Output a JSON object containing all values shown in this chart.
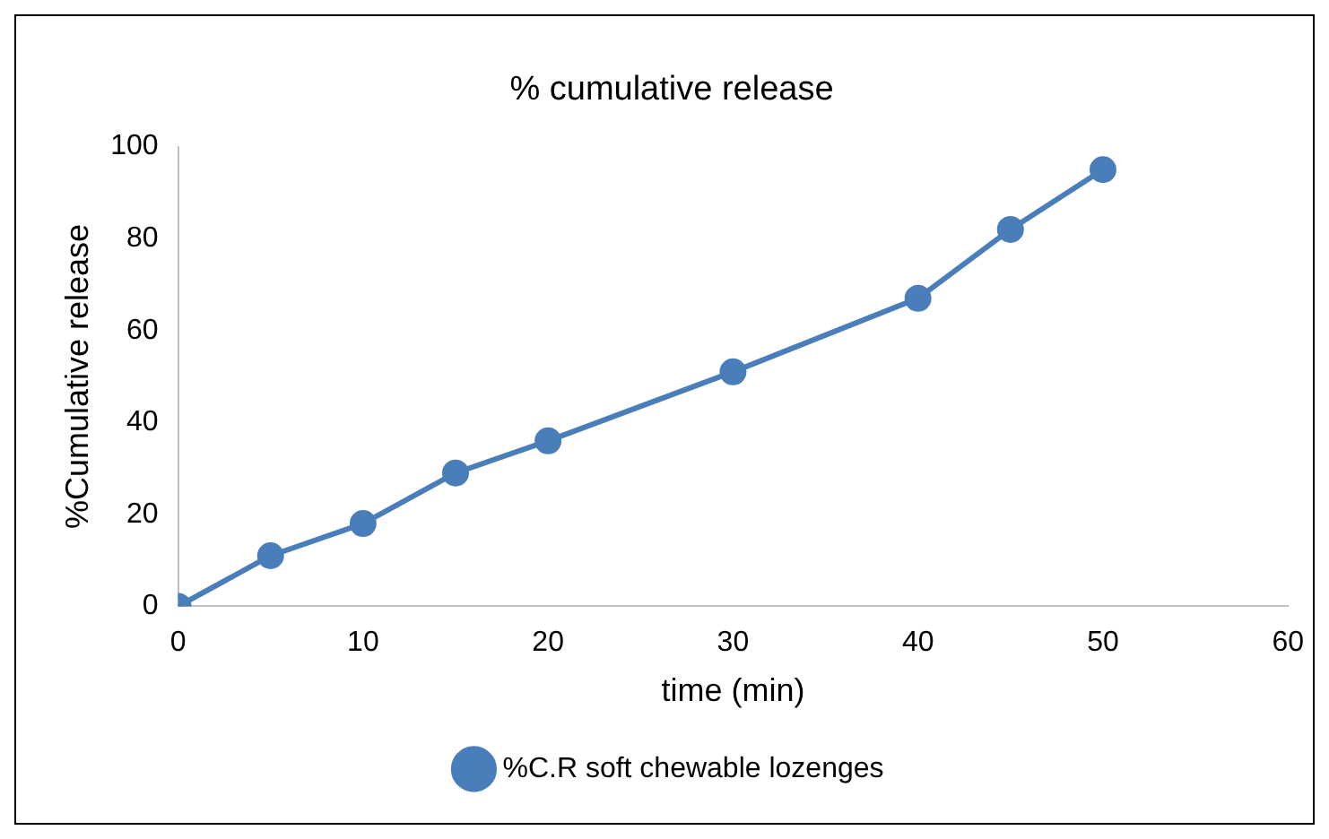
{
  "chart_data": {
    "type": "line",
    "title": "% cumulative release",
    "xlabel": "time (min)",
    "ylabel": "%Cumulative release",
    "x": [
      0,
      5,
      10,
      15,
      20,
      30,
      40,
      45,
      50
    ],
    "series": [
      {
        "name": "%C.R soft chewable lozenges",
        "color": "#4a7ebb",
        "values": [
          0,
          11,
          18,
          29,
          36,
          51,
          67,
          82,
          95
        ]
      }
    ],
    "xlim": [
      0,
      60
    ],
    "xticks": [
      0,
      10,
      20,
      30,
      40,
      50,
      60
    ],
    "ylim": [
      0,
      100
    ],
    "yticks": [
      0,
      20,
      40,
      60,
      80,
      100
    ],
    "grid": false,
    "legend": "bottom",
    "marker": "circle",
    "line_style": "solid"
  }
}
